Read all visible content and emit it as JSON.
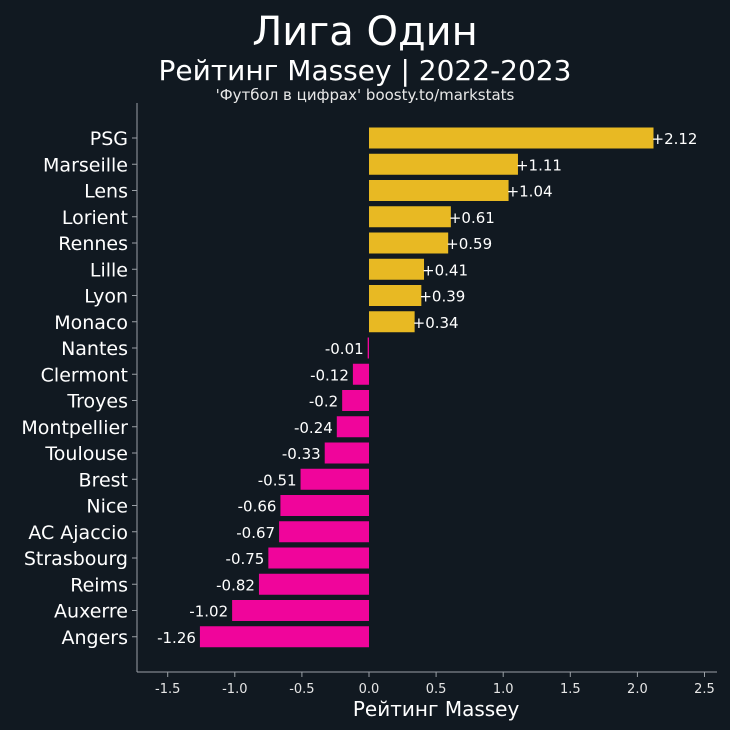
{
  "colors": {
    "background": "#111921",
    "positive": "#e8b923",
    "negative": "#f0059b",
    "axis": "#9aa0a6",
    "text": "#ffffff"
  },
  "chart_data": {
    "type": "bar",
    "orientation": "horizontal",
    "title": "Лига Один",
    "subtitle": "Рейтинг Massey | 2022-2023",
    "source": "'Футбол в цифрах' boosty.to/markstats",
    "xlabel": "Рейтинг Massey",
    "ylabel": "",
    "xlim": [
      -1.7,
      2.55
    ],
    "xticks": [
      -1.5,
      -1.0,
      -0.5,
      0.0,
      0.5,
      1.0,
      1.5,
      2.0,
      2.5
    ],
    "xtick_labels": [
      "-1.5",
      "-1.0",
      "-0.5",
      "0.0",
      "0.5",
      "1.0",
      "1.5",
      "2.0",
      "2.5"
    ],
    "grid": false,
    "categories": [
      "PSG",
      "Marseille",
      "Lens",
      "Lorient",
      "Rennes",
      "Lille",
      "Lyon",
      "Monaco",
      "Nantes",
      "Clermont",
      "Troyes",
      "Montpellier",
      "Toulouse",
      "Brest",
      "Nice",
      "AC Ajaccio",
      "Strasbourg",
      "Reims",
      "Auxerre",
      "Angers"
    ],
    "values": [
      2.12,
      1.11,
      1.04,
      0.61,
      0.59,
      0.41,
      0.39,
      0.34,
      -0.01,
      -0.12,
      -0.2,
      -0.24,
      -0.33,
      -0.51,
      -0.66,
      -0.67,
      -0.75,
      -0.82,
      -1.02,
      -1.26
    ],
    "value_labels": [
      "+2.12",
      "+1.11",
      "+1.04",
      "+0.61",
      "+0.59",
      "+0.41",
      "+0.39",
      "+0.34",
      "-0.01",
      "-0.12",
      "-0.2",
      "-0.24",
      "-0.33",
      "-0.51",
      "-0.66",
      "-0.67",
      "-0.75",
      "-0.82",
      "-1.02",
      "-1.26"
    ]
  }
}
